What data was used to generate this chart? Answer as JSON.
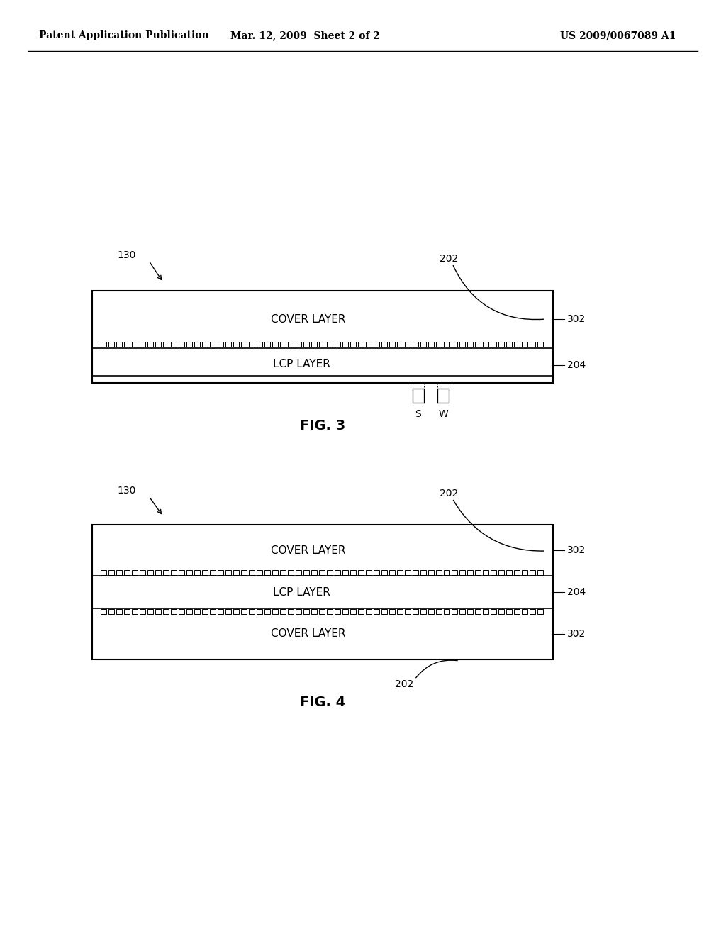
{
  "bg_color": "#ffffff",
  "header_left": "Patent Application Publication",
  "header_mid": "Mar. 12, 2009  Sheet 2 of 2",
  "header_right": "US 2009/0067089 A1",
  "fig3": {
    "title": "FIG. 3",
    "label_130": "130",
    "label_202": "202",
    "label_204": "204",
    "label_302": "302",
    "label_S": "S",
    "label_W": "W",
    "cover_layer_text": "COVER LAYER",
    "lcp_layer_text": "LCP LAYER"
  },
  "fig4": {
    "title": "FIG. 4",
    "label_130": "130",
    "label_202_top": "202",
    "label_202_bot": "202",
    "label_204": "204",
    "label_302_top": "302",
    "label_302_bot": "302",
    "cover_layer_text": "COVER LAYER",
    "lcp_layer_text": "LCP LAYER"
  }
}
